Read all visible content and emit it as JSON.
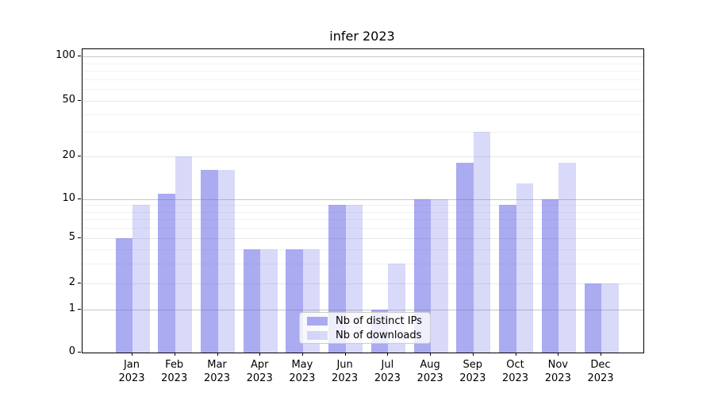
{
  "chart_data": {
    "type": "bar",
    "title": "infer 2023",
    "categories": [
      "Jan 2023",
      "Feb 2023",
      "Mar 2023",
      "Apr 2023",
      "May 2023",
      "Jun 2023",
      "Jul 2023",
      "Aug 2023",
      "Sep 2023",
      "Oct 2023",
      "Nov 2023",
      "Dec 2023"
    ],
    "series": [
      {
        "name": "Nb of distinct IPs",
        "values": [
          5,
          11,
          16,
          4,
          4,
          9,
          1,
          10,
          18,
          9,
          10,
          2
        ],
        "color": "rgba(102,102,230,0.55)"
      },
      {
        "name": "Nb of downloads",
        "values": [
          9,
          20,
          16,
          4,
          4,
          9,
          3,
          10,
          30,
          13,
          18,
          2
        ],
        "color": "rgba(102,102,230,0.25)"
      }
    ],
    "xlabel": "",
    "ylabel": "",
    "yscale": "symlog",
    "ylim": [
      0,
      110
    ],
    "yticks": [
      0,
      1,
      2,
      5,
      10,
      20,
      50,
      100
    ],
    "yticks_minor": [
      3,
      4,
      6,
      7,
      8,
      9,
      30,
      40,
      60,
      70,
      80,
      90
    ],
    "grid": true,
    "legend_position": "lower center"
  },
  "legend": {
    "item1": "Nb of distinct IPs",
    "item2": "Nb of downloads"
  },
  "colors": {
    "bar_base": "#6666e6",
    "grid_major": "#c6c6c6",
    "grid_mid": "#e7e7e7",
    "grid_minor": "#f2f2f2",
    "spine": "#000000",
    "text": "#000000",
    "legend_border": "#cccccc"
  }
}
